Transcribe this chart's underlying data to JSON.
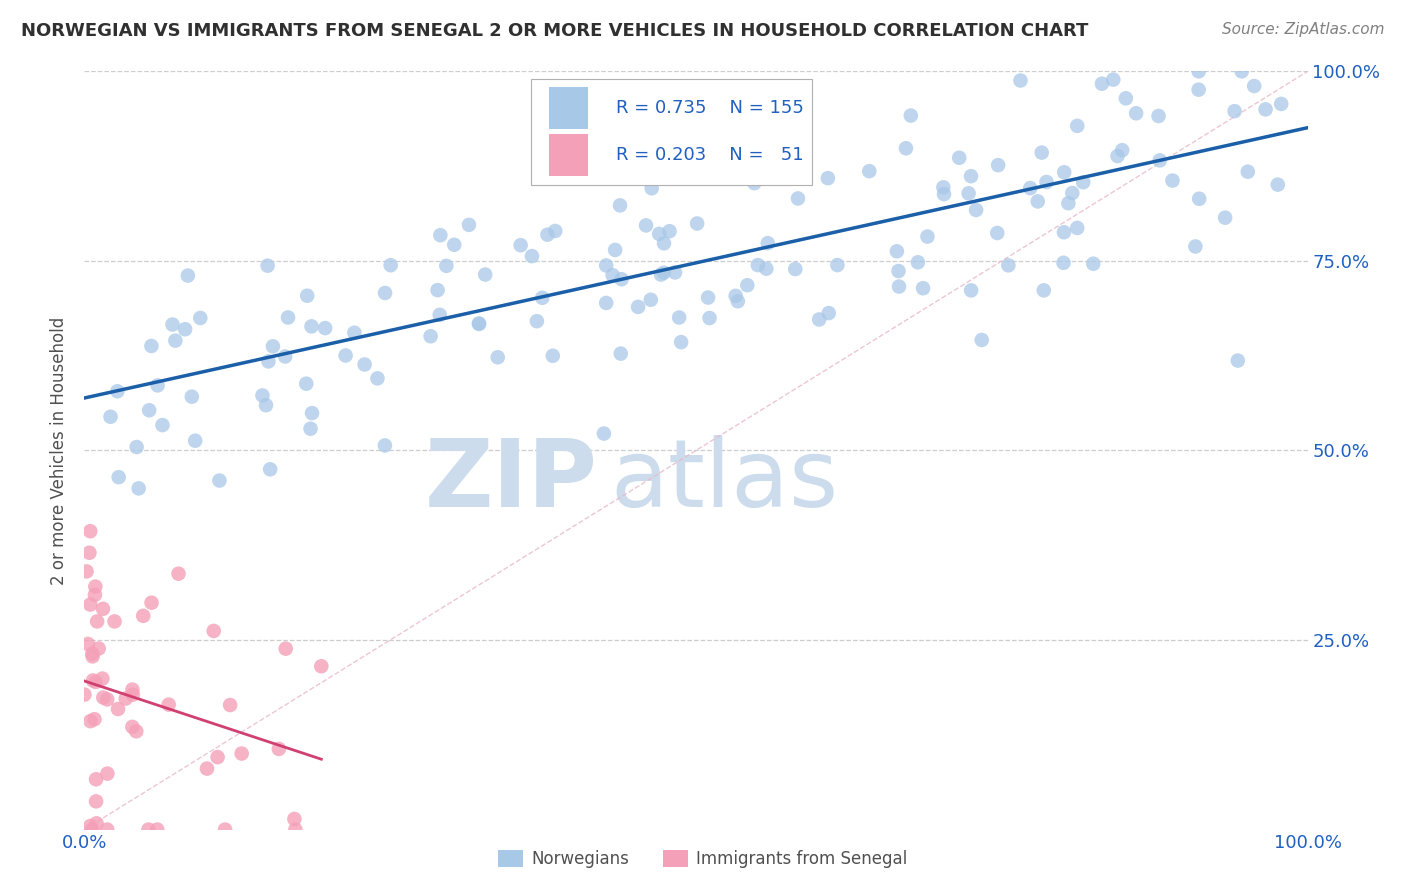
{
  "title": "NORWEGIAN VS IMMIGRANTS FROM SENEGAL 2 OR MORE VEHICLES IN HOUSEHOLD CORRELATION CHART",
  "source_text": "Source: ZipAtlas.com",
  "ylabel": "2 or more Vehicles in Household",
  "blue_color": "#a8c8e8",
  "pink_color": "#f4a0b8",
  "line_blue": "#1a5fa8",
  "line_pink": "#d04070",
  "diag_color": "#d8b0c0",
  "legend_text_color": "#2060c0",
  "watermark_color": "#ccdcec",
  "background_color": "#ffffff",
  "grid_color": "#c8c8c8",
  "title_color": "#303030",
  "axis_label_color": "#505050",
  "tick_label_color": "#2060c0",
  "source_color": "#808080"
}
